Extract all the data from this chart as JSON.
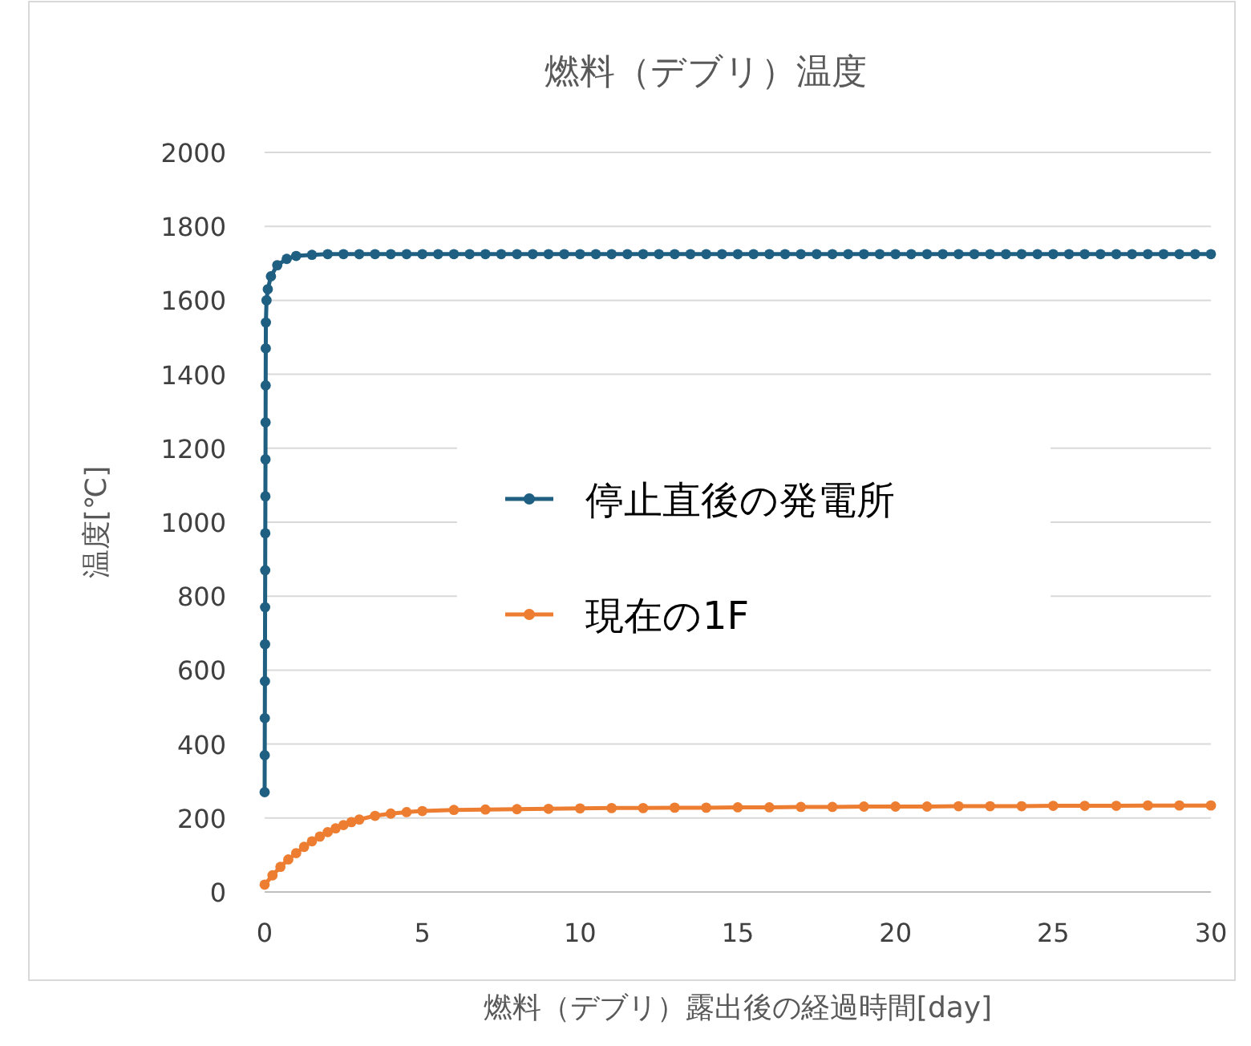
{
  "chart_data": {
    "type": "line",
    "title": "燃料（デブリ）温度",
    "xlabel": "燃料（デブリ）露出後の経過時間[day]",
    "ylabel": "温度[℃]",
    "xlim": [
      0,
      30
    ],
    "xticks": [
      0,
      5,
      10,
      15,
      20,
      25,
      30
    ],
    "ylim": [
      0,
      2000
    ],
    "yticks": [
      0,
      200,
      400,
      600,
      800,
      1000,
      1200,
      1400,
      1600,
      1800,
      2000
    ],
    "grid": "y",
    "legend": "center",
    "marker": "circle",
    "line_style": "solid",
    "series": [
      {
        "name": "停止直後の発電所",
        "color": "#1f5f82",
        "x": [
          0,
          0.003,
          0.006,
          0.009,
          0.012,
          0.015,
          0.018,
          0.021,
          0.024,
          0.027,
          0.03,
          0.033,
          0.036,
          0.04,
          0.06,
          0.1,
          0.2,
          0.4,
          0.7,
          1,
          1.5,
          2,
          2.5,
          3,
          3.5,
          4,
          4.5,
          5,
          5.5,
          6,
          6.5,
          7,
          7.5,
          8,
          8.5,
          9,
          9.5,
          10,
          10.5,
          11,
          11.5,
          12,
          12.5,
          13,
          13.5,
          14,
          14.5,
          15,
          15.5,
          16,
          16.5,
          17,
          17.5,
          18,
          18.5,
          19,
          19.5,
          20,
          20.5,
          21,
          21.5,
          22,
          22.5,
          23,
          23.5,
          24,
          24.5,
          25,
          25.5,
          26,
          26.5,
          27,
          27.5,
          28,
          28.5,
          29,
          29.5,
          30
        ],
        "values": [
          270,
          370,
          470,
          570,
          670,
          770,
          870,
          970,
          1070,
          1170,
          1270,
          1370,
          1470,
          1540,
          1600,
          1630,
          1665,
          1695,
          1712,
          1720,
          1723,
          1725,
          1725,
          1725,
          1725,
          1725,
          1725,
          1725,
          1725,
          1725,
          1725,
          1725,
          1725,
          1725,
          1725,
          1725,
          1725,
          1725,
          1725,
          1725,
          1725,
          1725,
          1725,
          1725,
          1725,
          1725,
          1725,
          1725,
          1725,
          1725,
          1725,
          1725,
          1725,
          1725,
          1725,
          1725,
          1725,
          1725,
          1725,
          1725,
          1725,
          1725,
          1725,
          1725,
          1725,
          1725,
          1725,
          1725,
          1725,
          1725,
          1725,
          1725,
          1725,
          1725,
          1725,
          1725,
          1725,
          1725
        ]
      },
      {
        "name": "現在の1F",
        "color": "#ed7d31",
        "x": [
          0,
          0.25,
          0.5,
          0.75,
          1,
          1.25,
          1.5,
          1.75,
          2,
          2.25,
          2.5,
          2.75,
          3,
          3.5,
          4,
          4.5,
          5,
          6,
          7,
          8,
          9,
          10,
          11,
          12,
          13,
          14,
          15,
          16,
          17,
          18,
          19,
          20,
          21,
          22,
          23,
          24,
          25,
          26,
          27,
          28,
          29,
          30
        ],
        "values": [
          20,
          45,
          68,
          88,
          105,
          122,
          137,
          150,
          162,
          172,
          181,
          189,
          196,
          206,
          212,
          216,
          219,
          222,
          223,
          224,
          225,
          226,
          227,
          227,
          228,
          228,
          229,
          229,
          230,
          230,
          231,
          231,
          231,
          232,
          232,
          232,
          233,
          233,
          233,
          234,
          234,
          234
        ]
      }
    ]
  }
}
